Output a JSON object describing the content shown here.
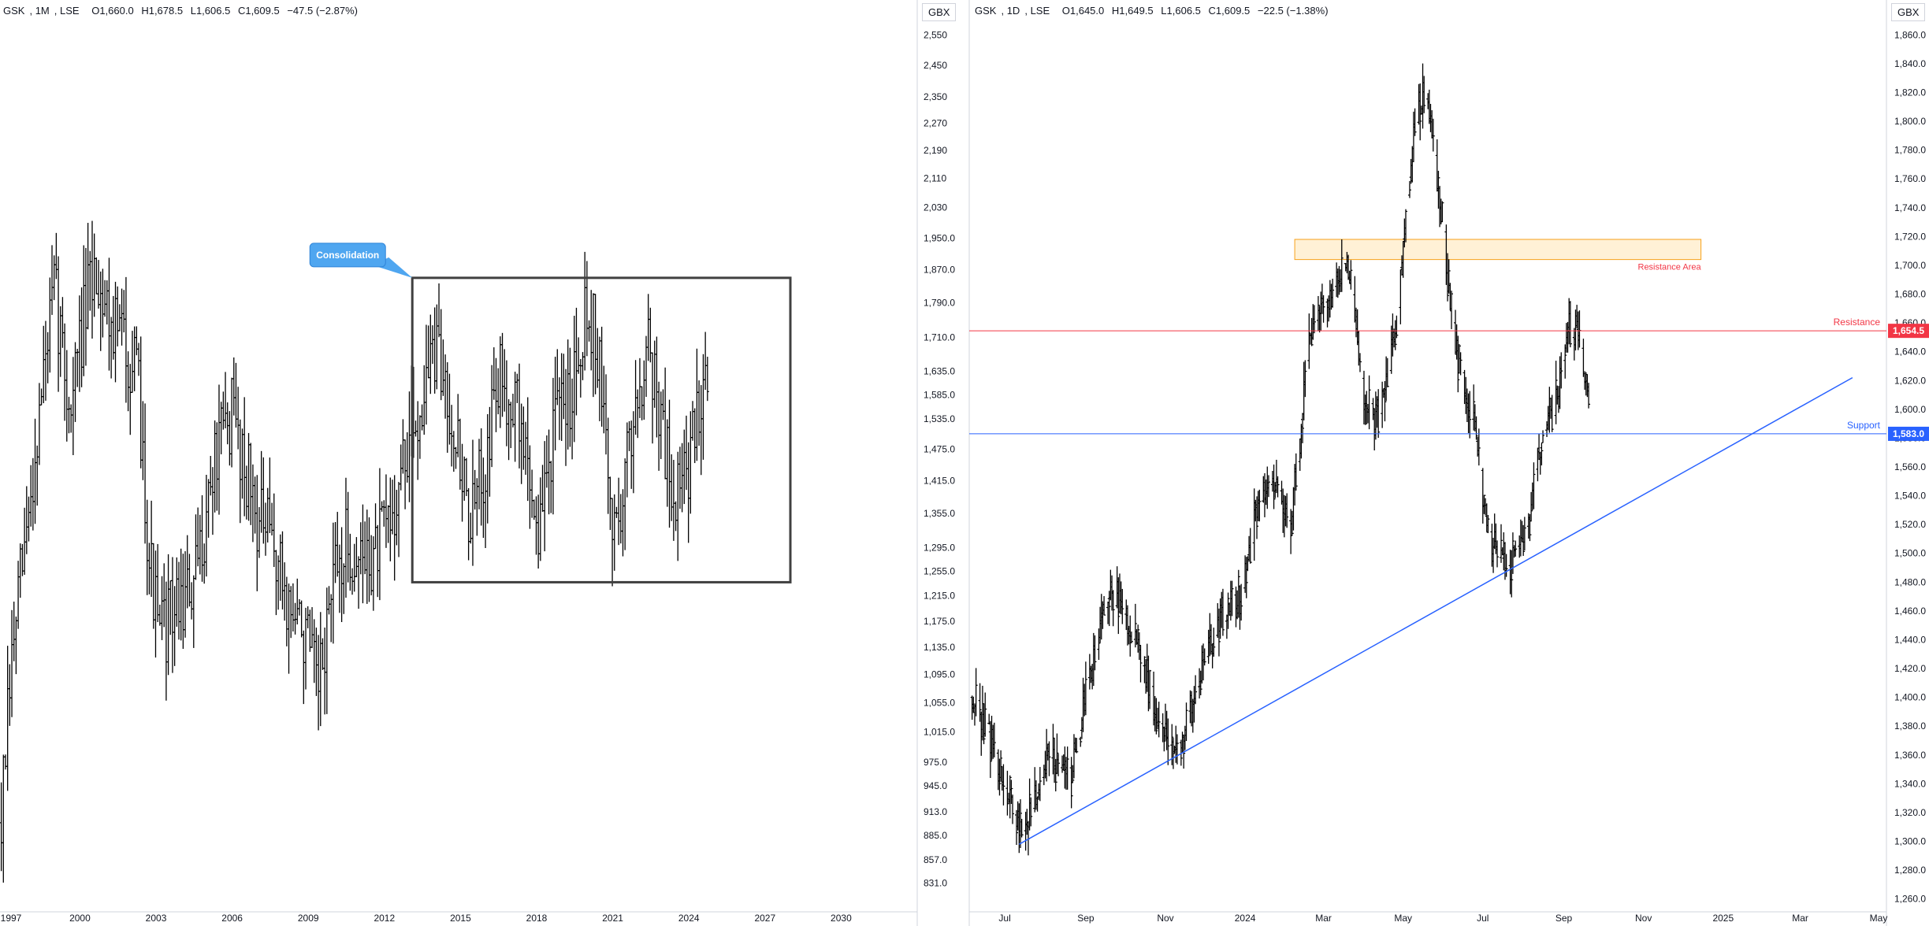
{
  "left_panel": {
    "header": {
      "symbol": "GSK",
      "interval": "1M",
      "exchange": "LSE",
      "open": "O1,660.0",
      "high": "H1,678.5",
      "low": "L1,606.5",
      "close": "C1,609.5",
      "change": "−47.5 (−2.87%)"
    },
    "unit_label": "GBX",
    "annotation_label": "Consolidation"
  },
  "right_panel": {
    "header": {
      "symbol": "GSK",
      "interval": "1D",
      "exchange": "LSE",
      "open": "O1,645.0",
      "high": "H1,649.5",
      "low": "L1,606.5",
      "close": "C1,609.5",
      "change": "−22.5 (−1.38%)"
    },
    "unit_label": "GBX",
    "resistance_area_label": "Resistance Area",
    "resistance_label": "Resistance",
    "support_label": "Support",
    "resistance_price_tag": "1,654.5",
    "support_price_tag": "1,583.0"
  },
  "colors": {
    "bars": "#000000",
    "resistance": "#f23645",
    "support": "#2962ff",
    "resistance_area_fill": "#fff1d6",
    "resistance_area_stroke": "#f7a21b",
    "callout": "#4fa6f0",
    "box": "#404040",
    "axis_text": "#131722"
  },
  "chart_data": [
    {
      "type": "ohlc",
      "title": "GSK, 1M, LSE",
      "scale": "log",
      "ylim": [
        800,
        2600
      ],
      "y_ticks": [
        "2,550",
        "2,450",
        "2,350",
        "2,270",
        "2,190",
        "2,110",
        "2,030",
        "1,950.0",
        "1,870.0",
        "1,790.0",
        "1,710.0",
        "1,635.0",
        "1,585.0",
        "1,535.0",
        "1,475.0",
        "1,415.0",
        "1,355.0",
        "1,295.0",
        "1,255.0",
        "1,215.0",
        "1,175.0",
        "1,135.0",
        "1,095.0",
        "1,055.0",
        "1,015.0",
        "975.0",
        "945.0",
        "913.0",
        "885.0",
        "857.0",
        "831.0"
      ],
      "y_tick_values": [
        2550,
        2450,
        2350,
        2270,
        2190,
        2110,
        2030,
        1950,
        1870,
        1790,
        1710,
        1635,
        1585,
        1535,
        1475,
        1415,
        1355,
        1295,
        1255,
        1215,
        1175,
        1135,
        1095,
        1055,
        1015,
        975,
        945,
        913,
        885,
        857,
        831
      ],
      "x_ticks": [
        "1997",
        "2000",
        "2003",
        "2006",
        "2009",
        "2012",
        "2015",
        "2018",
        "2021",
        "2024",
        "2027",
        "2030"
      ],
      "x_tick_years": [
        1997,
        2000,
        2003,
        2006,
        2009,
        2012,
        2015,
        2018,
        2021,
        2024,
        2027,
        2030
      ],
      "xlim": [
        1996.85,
        2033.0
      ],
      "price_path": [
        [
          1996.9,
          900
        ],
        [
          1997.4,
          1150
        ],
        [
          1998.0,
          1350
        ],
        [
          1998.5,
          1600
        ],
        [
          1999.0,
          1820
        ],
        [
          1999.6,
          1550
        ],
        [
          2000.0,
          1700
        ],
        [
          2000.6,
          1880
        ],
        [
          2001.2,
          1760
        ],
        [
          2001.8,
          1700
        ],
        [
          2002.3,
          1600
        ],
        [
          2002.7,
          1300
        ],
        [
          2003.1,
          1150
        ],
        [
          2003.8,
          1200
        ],
        [
          2004.5,
          1220
        ],
        [
          2005.3,
          1450
        ],
        [
          2006.0,
          1550
        ],
        [
          2006.5,
          1450
        ],
        [
          2007.0,
          1350
        ],
        [
          2007.6,
          1300
        ],
        [
          2008.2,
          1200
        ],
        [
          2008.9,
          1150
        ],
        [
          2009.4,
          1060
        ],
        [
          2009.9,
          1220
        ],
        [
          2010.5,
          1300
        ],
        [
          2011.0,
          1270
        ],
        [
          2011.6,
          1280
        ],
        [
          2012.3,
          1350
        ],
        [
          2012.8,
          1450
        ],
        [
          2013.3,
          1540
        ],
        [
          2013.9,
          1680
        ],
        [
          2014.5,
          1600
        ],
        [
          2015.0,
          1450
        ],
        [
          2015.4,
          1330
        ],
        [
          2015.9,
          1440
        ],
        [
          2016.5,
          1620
        ],
        [
          2017.1,
          1580
        ],
        [
          2017.6,
          1460
        ],
        [
          2018.1,
          1310
        ],
        [
          2018.6,
          1500
        ],
        [
          2019.3,
          1590
        ],
        [
          2019.9,
          1780
        ],
        [
          2020.3,
          1730
        ],
        [
          2020.6,
          1560
        ],
        [
          2021.0,
          1320
        ],
        [
          2021.4,
          1390
        ],
        [
          2021.9,
          1580
        ],
        [
          2022.4,
          1710
        ],
        [
          2022.9,
          1530
        ],
        [
          2023.4,
          1390
        ],
        [
          2023.9,
          1420
        ],
        [
          2024.3,
          1530
        ],
        [
          2024.6,
          1650
        ],
        [
          2024.75,
          1610
        ]
      ],
      "rectangle": {
        "x": [
          2013.1,
          2028.0
        ],
        "y": [
          1237,
          1850
        ]
      },
      "annotations": [
        "Consolidation"
      ]
    },
    {
      "type": "ohlc",
      "title": "GSK, 1D, LSE",
      "ylim": [
        1250,
        1870
      ],
      "y_ticks": [
        "1,860.0",
        "1,840.0",
        "1,820.0",
        "1,800.0",
        "1,780.0",
        "1,760.0",
        "1,740.0",
        "1,720.0",
        "1,700.0",
        "1,680.0",
        "1,660.0",
        "1,640.0",
        "1,620.0",
        "1,600.0",
        "1,580.0",
        "1,560.0",
        "1,540.0",
        "1,520.0",
        "1,500.0",
        "1,480.0",
        "1,460.0",
        "1,440.0",
        "1,420.0",
        "1,400.0",
        "1,380.0",
        "1,360.0",
        "1,340.0",
        "1,320.0",
        "1,300.0",
        "1,280.0",
        "1,260.0"
      ],
      "y_tick_values": [
        1860,
        1840,
        1820,
        1800,
        1780,
        1760,
        1740,
        1720,
        1700,
        1680,
        1660,
        1640,
        1620,
        1600,
        1580,
        1560,
        1540,
        1520,
        1500,
        1480,
        1460,
        1440,
        1420,
        1400,
        1380,
        1360,
        1340,
        1320,
        1300,
        1280,
        1260
      ],
      "x_ticks": [
        "Jul",
        "Sep",
        "Nov",
        "2024",
        "Mar",
        "May",
        "Jul",
        "Sep",
        "Nov",
        "2025",
        "Mar",
        "May"
      ],
      "x_tick_dates": [
        "2023-07-01",
        "2023-09-01",
        "2023-11-01",
        "2024-01-01",
        "2024-03-01",
        "2024-05-01",
        "2024-07-01",
        "2024-09-01",
        "2024-11-01",
        "2025-01-01",
        "2025-03-01",
        "2025-05-01"
      ],
      "xlim": [
        "2023-06-05",
        "2025-05-06"
      ],
      "price_path": [
        [
          "2023-06-06",
          1400
        ],
        [
          "2023-06-20",
          1370
        ],
        [
          "2023-07-05",
          1330
        ],
        [
          "2023-07-15",
          1305
        ],
        [
          "2023-08-05",
          1360
        ],
        [
          "2023-08-20",
          1340
        ],
        [
          "2023-09-05",
          1420
        ],
        [
          "2023-09-20",
          1475
        ],
        [
          "2023-10-10",
          1440
        ],
        [
          "2023-10-25",
          1390
        ],
        [
          "2023-11-10",
          1360
        ],
        [
          "2023-11-20",
          1390
        ],
        [
          "2023-12-10",
          1450
        ],
        [
          "2023-12-28",
          1470
        ],
        [
          "2024-01-10",
          1530
        ],
        [
          "2024-01-25",
          1550
        ],
        [
          "2024-02-05",
          1520
        ],
        [
          "2024-02-20",
          1650
        ],
        [
          "2024-03-05",
          1680
        ],
        [
          "2024-03-20",
          1700
        ],
        [
          "2024-04-01",
          1610
        ],
        [
          "2024-04-10",
          1590
        ],
        [
          "2024-04-25",
          1650
        ],
        [
          "2024-05-10",
          1800
        ],
        [
          "2024-05-20",
          1820
        ],
        [
          "2024-05-31",
          1730
        ],
        [
          "2024-06-10",
          1640
        ],
        [
          "2024-06-25",
          1590
        ],
        [
          "2024-07-05",
          1510
        ],
        [
          "2024-07-20",
          1490
        ],
        [
          "2024-08-05",
          1520
        ],
        [
          "2024-08-15",
          1580
        ],
        [
          "2024-08-28",
          1610
        ],
        [
          "2024-09-05",
          1660
        ],
        [
          "2024-09-12",
          1650
        ],
        [
          "2024-09-20",
          1610
        ]
      ],
      "resistance_area": {
        "x": [
          "2024-02-08",
          "2024-12-15"
        ],
        "y": [
          1704,
          1718
        ]
      },
      "resistance_level": 1654.5,
      "support_level": 1583.0,
      "trendline": {
        "x": [
          "2023-07-12",
          "2025-04-10"
        ],
        "y": [
          1298,
          1622
        ]
      },
      "annotations": [
        "Resistance Area",
        "Resistance",
        "Support"
      ]
    }
  ]
}
